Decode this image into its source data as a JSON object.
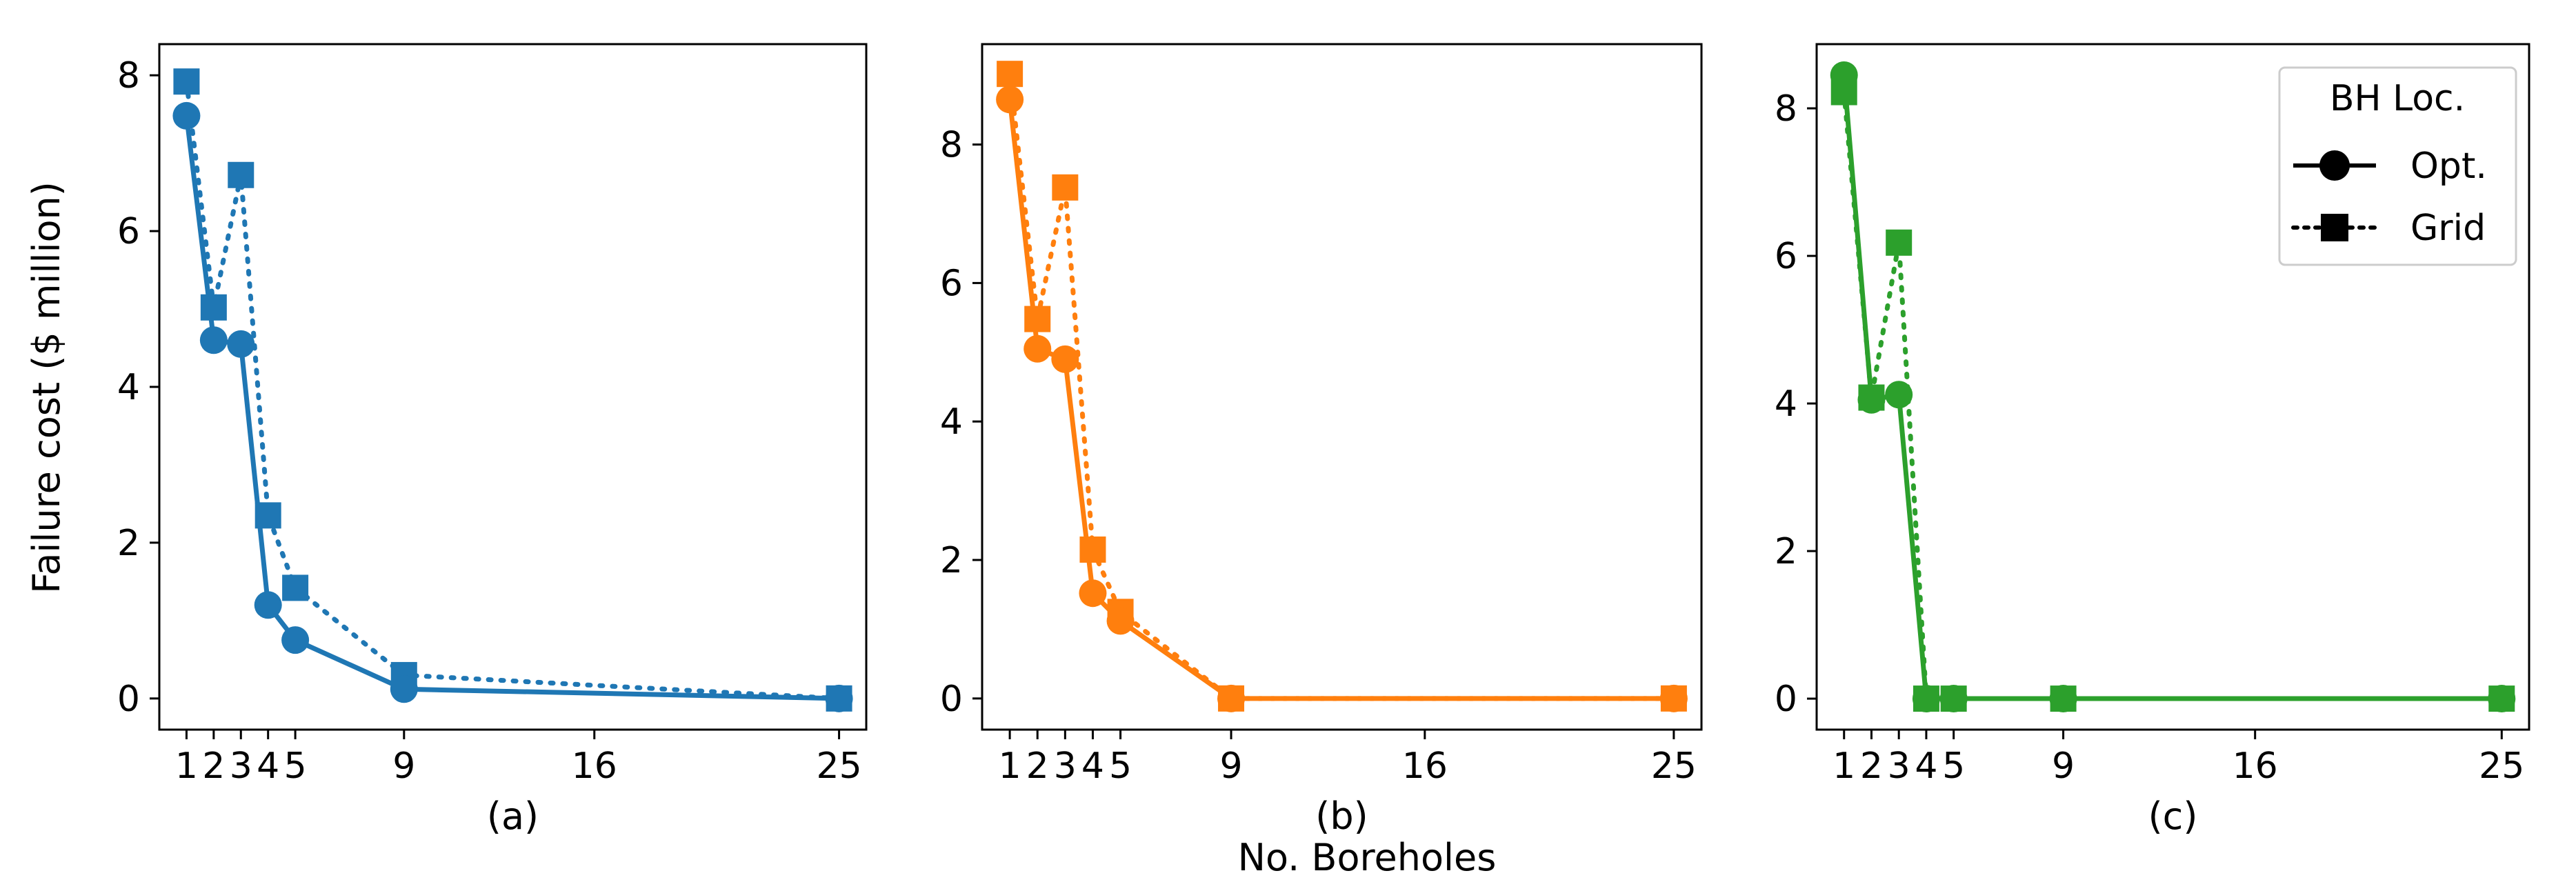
{
  "figure": {
    "ylabel": "Failure cost ($ million)",
    "xlabel": "No. Boreholes"
  },
  "legend": {
    "title": "BH Loc.",
    "entries": [
      {
        "label": "Opt.",
        "marker": "circle",
        "line": "solid"
      },
      {
        "label": "Grid",
        "marker": "square",
        "line": "dotted"
      }
    ],
    "placement": "top-right of panel (c)"
  },
  "chart_data": [
    {
      "type": "line",
      "panel_label": "(a)",
      "color": "#1f77b4",
      "x_ticks": [
        1,
        2,
        3,
        4,
        5,
        9,
        16,
        25
      ],
      "y_ticks": [
        0,
        2,
        4,
        6,
        8
      ],
      "xlim": [
        0,
        26
      ],
      "ylim": [
        -0.4,
        8.4
      ],
      "series": [
        {
          "name": "Opt.",
          "x": [
            1,
            2,
            3,
            4,
            5,
            9,
            25
          ],
          "y": [
            7.48,
            4.6,
            4.55,
            1.2,
            0.75,
            0.12,
            0.0
          ]
        },
        {
          "name": "Grid",
          "x": [
            1,
            2,
            3,
            4,
            5,
            9,
            25
          ],
          "y": [
            7.92,
            5.02,
            6.72,
            2.35,
            1.42,
            0.3,
            0.0
          ]
        }
      ]
    },
    {
      "type": "line",
      "panel_label": "(b)",
      "color": "#ff7f0e",
      "x_ticks": [
        1,
        2,
        3,
        4,
        5,
        9,
        16,
        25
      ],
      "y_ticks": [
        0,
        2,
        4,
        6,
        8
      ],
      "xlim": [
        0,
        26
      ],
      "ylim": [
        -0.45,
        9.45
      ],
      "series": [
        {
          "name": "Opt.",
          "x": [
            1,
            2,
            3,
            4,
            5,
            9,
            25
          ],
          "y": [
            8.65,
            5.05,
            4.9,
            1.52,
            1.12,
            0.0,
            0.0
          ]
        },
        {
          "name": "Grid",
          "x": [
            1,
            2,
            3,
            4,
            5,
            9,
            25
          ],
          "y": [
            9.02,
            5.48,
            7.38,
            2.15,
            1.25,
            0.0,
            0.0
          ]
        }
      ]
    },
    {
      "type": "line",
      "panel_label": "(c)",
      "color": "#2ca02c",
      "x_ticks": [
        1,
        2,
        3,
        4,
        5,
        9,
        16,
        25
      ],
      "y_ticks": [
        0,
        2,
        4,
        6,
        8
      ],
      "xlim": [
        0,
        26
      ],
      "ylim": [
        -0.42,
        8.87
      ],
      "series": [
        {
          "name": "Opt.",
          "x": [
            1,
            2,
            3,
            4,
            5,
            9,
            25
          ],
          "y": [
            8.45,
            4.05,
            4.12,
            0.0,
            0.0,
            0.0,
            0.0
          ]
        },
        {
          "name": "Grid",
          "x": [
            1,
            2,
            3,
            4,
            5,
            9,
            25
          ],
          "y": [
            8.22,
            4.08,
            6.18,
            0.0,
            0.0,
            0.0,
            0.0
          ]
        }
      ]
    }
  ]
}
